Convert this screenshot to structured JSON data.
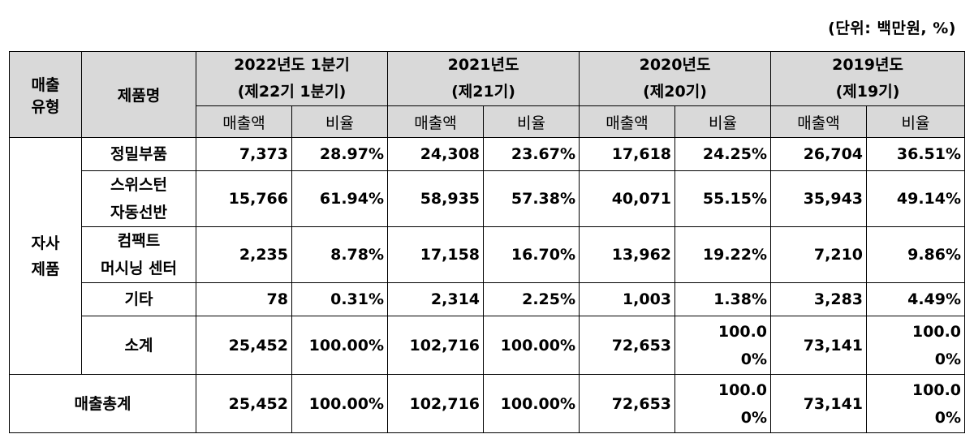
{
  "unit_note": "(단위: 백만원, %)",
  "header": {
    "type_col": "매출\n유형",
    "product_col": "제품명",
    "periods": [
      {
        "line1": "2022년도 1분기",
        "line2": "(제22기 1분기)"
      },
      {
        "line1": "2021년도",
        "line2": "(제21기)"
      },
      {
        "line1": "2020년도",
        "line2": "(제20기)"
      },
      {
        "line1": "2019년도",
        "line2": "(제19기)"
      }
    ],
    "sub_sales": "매출액",
    "sub_ratio": "비율"
  },
  "category": "자사\n제품",
  "rows": [
    {
      "name": "정밀부품",
      "cells": [
        "7,373",
        "28.97%",
        "24,308",
        "23.67%",
        "17,618",
        "24.25%",
        "26,704",
        "36.51%"
      ]
    },
    {
      "name": "스위스턴\n자동선반",
      "cells": [
        "15,766",
        "61.94%",
        "58,935",
        "57.38%",
        "40,071",
        "55.15%",
        "35,943",
        "49.14%"
      ]
    },
    {
      "name": "컴팩트\n머시닝 센터",
      "cells": [
        "2,235",
        "8.78%",
        "17,158",
        "16.70%",
        "13,962",
        "19.22%",
        "7,210",
        "9.86%"
      ]
    },
    {
      "name": "기타",
      "cells": [
        "78",
        "0.31%",
        "2,314",
        "2.25%",
        "1,003",
        "1.38%",
        "3,283",
        "4.49%"
      ]
    },
    {
      "name": "소계",
      "cells": [
        "25,452",
        "100.00%",
        "102,716",
        "100.00%",
        "72,653",
        "100.0\n0%",
        "73,141",
        "100.0\n0%"
      ]
    }
  ],
  "total": {
    "name": "매출총계",
    "cells": [
      "25,452",
      "100.00%",
      "102,716",
      "100.00%",
      "72,653",
      "100.0\n0%",
      "73,141",
      "100.0\n0%"
    ]
  }
}
